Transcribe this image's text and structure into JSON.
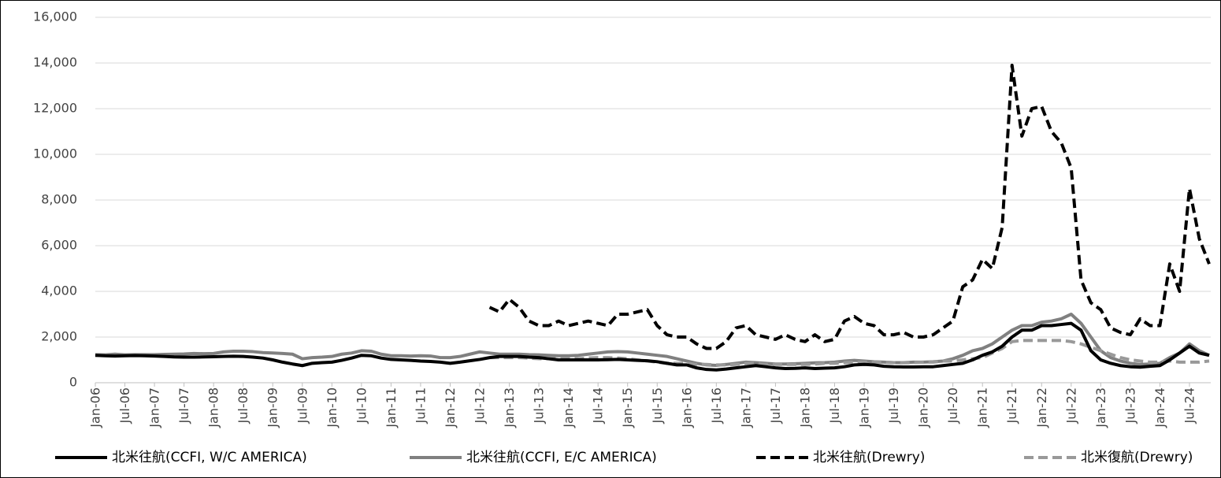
{
  "chart_data": {
    "type": "line",
    "categories": [
      "Jan-06",
      null,
      null,
      "Jul-06",
      null,
      null,
      "Jan-07",
      null,
      null,
      "Jul-07",
      null,
      null,
      "Jan-08",
      null,
      null,
      "Jul-08",
      null,
      null,
      "Jan-09",
      null,
      null,
      "Jul-09",
      null,
      null,
      "Jan-10",
      null,
      null,
      "Jul-10",
      null,
      null,
      "Jan-11",
      null,
      null,
      "Jul-11",
      null,
      null,
      "Jan-12",
      null,
      null,
      "Jul-12",
      null,
      null,
      "Jan-13",
      null,
      null,
      "Jul-13",
      null,
      null,
      "Jan-14",
      null,
      null,
      "Jul-14",
      null,
      null,
      "Jan-15",
      null,
      null,
      "Jul-15",
      null,
      null,
      "Jan-16",
      null,
      null,
      "Jul-16",
      null,
      null,
      "Jan-17",
      null,
      null,
      "Jul-17",
      null,
      null,
      "Jan-18",
      null,
      null,
      "Jul-18",
      null,
      null,
      "Jan-19",
      null,
      null,
      "Jul-19",
      null,
      null,
      "Jan-20",
      null,
      null,
      "Jul-20",
      null,
      null,
      "Jan-21",
      null,
      null,
      "Jul-21",
      null,
      null,
      "Jan-22",
      null,
      null,
      "Jul-22",
      null,
      null,
      "Jan-23",
      null,
      null,
      "Jul-23",
      null,
      null,
      "Jan-24",
      null,
      null,
      "Jul-24",
      null,
      null
    ],
    "series": [
      {
        "name": "北米往航(CCFI, W/C AMERICA)",
        "color": "#000000",
        "dashed": false,
        "values": [
          1200,
          1180,
          1170,
          1180,
          1190,
          1180,
          1170,
          1150,
          1130,
          1120,
          1120,
          1130,
          1140,
          1150,
          1160,
          1150,
          1120,
          1080,
          1000,
          900,
          820,
          750,
          850,
          880,
          900,
          980,
          1080,
          1200,
          1180,
          1080,
          1020,
          1000,
          980,
          950,
          930,
          900,
          850,
          900,
          960,
          1020,
          1100,
          1150,
          1150,
          1150,
          1120,
          1100,
          1050,
          1000,
          1000,
          1000,
          1000,
          1000,
          1010,
          1020,
          1000,
          980,
          960,
          920,
          850,
          780,
          780,
          650,
          580,
          560,
          600,
          650,
          700,
          750,
          700,
          650,
          620,
          630,
          650,
          620,
          640,
          650,
          700,
          780,
          800,
          780,
          720,
          700,
          690,
          690,
          700,
          700,
          750,
          800,
          850,
          1000,
          1200,
          1350,
          1600,
          2000,
          2300,
          2300,
          2500,
          2500,
          2550,
          2600,
          2300,
          1400,
          1000,
          850,
          750,
          700,
          680,
          720,
          750,
          1000,
          1300,
          1600,
          1300,
          1200
        ]
      },
      {
        "name": "北米往航(CCFI, E/C AMERICA)",
        "color": "#808080",
        "dashed": false,
        "values": [
          1230,
          1220,
          1250,
          1220,
          1230,
          1230,
          1230,
          1240,
          1250,
          1260,
          1280,
          1270,
          1280,
          1350,
          1380,
          1380,
          1360,
          1320,
          1300,
          1280,
          1250,
          1050,
          1100,
          1120,
          1150,
          1250,
          1300,
          1400,
          1380,
          1250,
          1180,
          1180,
          1170,
          1180,
          1170,
          1100,
          1100,
          1150,
          1250,
          1350,
          1300,
          1250,
          1250,
          1250,
          1230,
          1220,
          1200,
          1180,
          1180,
          1200,
          1250,
          1300,
          1350,
          1360,
          1350,
          1300,
          1250,
          1200,
          1150,
          1050,
          950,
          850,
          780,
          760,
          800,
          850,
          900,
          880,
          850,
          820,
          820,
          830,
          850,
          870,
          880,
          900,
          950,
          980,
          950,
          920,
          900,
          880,
          880,
          900,
          900,
          920,
          950,
          1050,
          1200,
          1400,
          1500,
          1700,
          2000,
          2300,
          2500,
          2500,
          2650,
          2700,
          2800,
          3000,
          2600,
          2000,
          1400,
          1100,
          950,
          850,
          800,
          820,
          850,
          1100,
          1300,
          1700,
          1400,
          1200
        ]
      },
      {
        "name": "北米往航(Drewry)",
        "color": "#000000",
        "dashed": true,
        "values": [
          null,
          null,
          null,
          null,
          null,
          null,
          null,
          null,
          null,
          null,
          null,
          null,
          null,
          null,
          null,
          null,
          null,
          null,
          null,
          null,
          null,
          null,
          null,
          null,
          null,
          null,
          null,
          null,
          null,
          null,
          null,
          null,
          null,
          null,
          null,
          null,
          null,
          null,
          null,
          null,
          3300,
          3100,
          3650,
          3300,
          2700,
          2500,
          2500,
          2700,
          2500,
          2600,
          2700,
          2600,
          2500,
          3000,
          3000,
          3100,
          3200,
          2500,
          2100,
          2000,
          2000,
          1700,
          1500,
          1500,
          1800,
          2400,
          2500,
          2100,
          2000,
          1900,
          2100,
          1900,
          1800,
          2100,
          1800,
          1900,
          2700,
          2900,
          2600,
          2500,
          2100,
          2100,
          2200,
          2000,
          2000,
          2100,
          2400,
          2700,
          4200,
          4500,
          5400,
          5000,
          6800,
          13900,
          10800,
          12000,
          12100,
          11000,
          10500,
          9400,
          4500,
          3500,
          3200,
          2400,
          2200,
          2100,
          2800,
          2500,
          2500,
          5200,
          4000,
          8500,
          6300,
          5200
        ]
      },
      {
        "name": "北米復航(Drewry)",
        "color": "#999999",
        "dashed": true,
        "values": [
          null,
          null,
          null,
          null,
          null,
          null,
          null,
          null,
          null,
          null,
          null,
          null,
          null,
          null,
          null,
          null,
          null,
          null,
          null,
          null,
          null,
          null,
          null,
          null,
          null,
          null,
          null,
          null,
          null,
          null,
          null,
          null,
          null,
          null,
          null,
          null,
          null,
          null,
          null,
          null,
          1100,
          1100,
          1100,
          1100,
          1080,
          1050,
          1050,
          1050,
          1050,
          1050,
          1080,
          1100,
          1100,
          1080,
          1050,
          1000,
          950,
          900,
          850,
          850,
          850,
          800,
          800,
          780,
          780,
          800,
          850,
          850,
          800,
          800,
          800,
          800,
          800,
          820,
          850,
          850,
          880,
          900,
          900,
          900,
          900,
          880,
          870,
          880,
          900,
          900,
          950,
          950,
          1000,
          1050,
          1100,
          1300,
          1500,
          1800,
          1850,
          1850,
          1850,
          1850,
          1850,
          1800,
          1700,
          1550,
          1400,
          1250,
          1100,
          1000,
          950,
          900,
          900,
          950,
          900,
          900,
          900,
          950
        ]
      }
    ],
    "ylim": [
      0,
      16000
    ],
    "yticks": [
      0,
      {
        "value": 2000,
        "label": "2,000"
      },
      {
        "value": 4000,
        "label": "4,000"
      },
      {
        "value": 6000,
        "label": "6,000"
      },
      {
        "value": 8000,
        "label": "8,000"
      },
      {
        "value": 10000,
        "label": "10,000"
      },
      {
        "value": 12000,
        "label": "12,000"
      },
      {
        "value": 14000,
        "label": "14,000"
      },
      {
        "value": 16000,
        "label": "16,000"
      }
    ],
    "grid": true,
    "legend": "bottom"
  }
}
